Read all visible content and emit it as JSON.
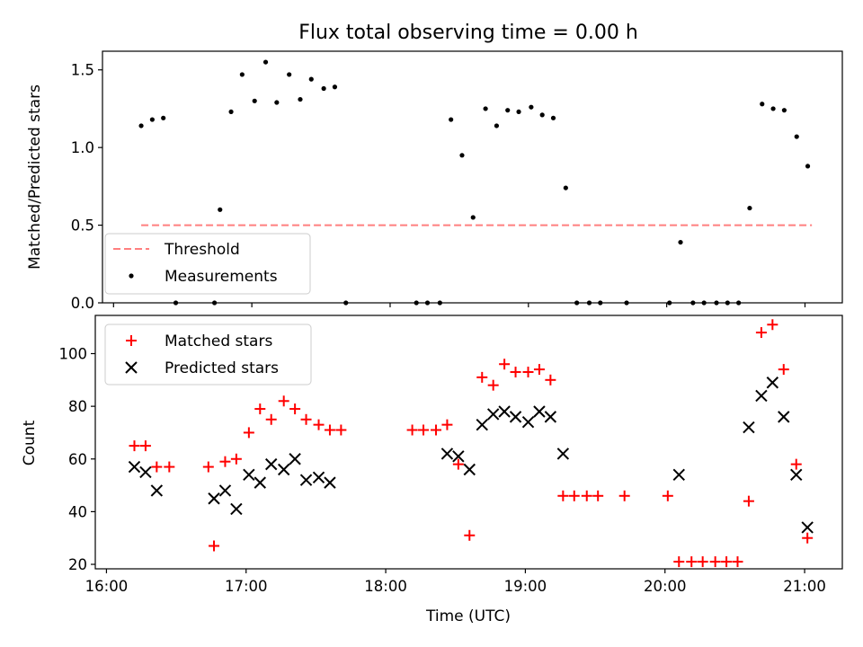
{
  "title": "Flux total observing time = 0.00 h",
  "colors": {
    "threshold": "#ff7f7f",
    "matched": "#ff0000",
    "predicted": "#000000",
    "measurement": "#000000"
  },
  "chart_data": [
    {
      "type": "scatter",
      "ylabel": "Matched/Predicted stars",
      "ylim": [
        0,
        1.62
      ],
      "yticks": [
        "0.0",
        "0.5",
        "1.0",
        "1.5"
      ],
      "xlim": [
        15.92,
        21.27
      ],
      "grid": false,
      "legend_placement": "lower-left",
      "threshold": {
        "name": "Threshold",
        "value": 0.5,
        "x": [
          16.2,
          21.05
        ]
      },
      "series": [
        {
          "name": "Measurements",
          "x": [
            16.2,
            16.28,
            16.36,
            16.45,
            16.73,
            16.77,
            16.85,
            16.93,
            17.02,
            17.1,
            17.18,
            17.27,
            17.35,
            17.43,
            17.52,
            17.6,
            17.68,
            18.19,
            18.27,
            18.36,
            18.44,
            18.52,
            18.6,
            18.69,
            18.77,
            18.85,
            18.93,
            19.02,
            19.1,
            19.18,
            19.27,
            19.35,
            19.44,
            19.52,
            19.71,
            20.02,
            20.1,
            20.19,
            20.27,
            20.36,
            20.44,
            20.52,
            20.6,
            20.69,
            20.77,
            20.85,
            20.94,
            21.02
          ],
          "y": [
            1.14,
            1.18,
            1.19,
            0,
            0,
            0.6,
            1.23,
            1.47,
            1.3,
            1.55,
            1.29,
            1.47,
            1.31,
            1.44,
            1.38,
            1.39,
            0,
            0,
            0,
            0,
            1.18,
            0.95,
            0.55,
            1.25,
            1.14,
            1.24,
            1.23,
            1.26,
            1.21,
            1.19,
            0.74,
            0,
            0,
            0,
            0,
            0,
            0.39,
            0,
            0,
            0,
            0,
            0,
            0.61,
            1.28,
            1.25,
            1.24,
            1.07,
            0.88
          ]
        }
      ]
    },
    {
      "type": "scatter",
      "xlabel": "Time (UTC)",
      "ylabel": "Count",
      "ylim": [
        18.3,
        114.5
      ],
      "yticks": [
        "20",
        "40",
        "60",
        "80",
        "100"
      ],
      "xlim": [
        15.92,
        21.27
      ],
      "xticks": [
        "16:00",
        "17:00",
        "18:00",
        "19:00",
        "20:00",
        "21:00"
      ],
      "grid": false,
      "legend_placement": "upper-left",
      "series": [
        {
          "name": "Matched stars",
          "x": [
            16.2,
            16.28,
            16.36,
            16.45,
            16.73,
            16.77,
            16.85,
            16.93,
            17.02,
            17.1,
            17.18,
            17.27,
            17.35,
            17.43,
            17.52,
            17.6,
            17.68,
            18.19,
            18.27,
            18.36,
            18.44,
            18.52,
            18.6,
            18.69,
            18.77,
            18.85,
            18.93,
            19.02,
            19.1,
            19.18,
            19.27,
            19.35,
            19.44,
            19.52,
            19.71,
            20.02,
            20.1,
            20.19,
            20.27,
            20.36,
            20.44,
            20.52,
            20.6,
            20.69,
            20.77,
            20.85,
            20.94,
            21.02
          ],
          "y": [
            65,
            65,
            57,
            57,
            57,
            27,
            59,
            60,
            70,
            79,
            75,
            82,
            79,
            75,
            73,
            71,
            71,
            71,
            71,
            71,
            73,
            58,
            31,
            91,
            88,
            96,
            93,
            93,
            94,
            90,
            46,
            46,
            46,
            46,
            46,
            46,
            21,
            21,
            21,
            21,
            21,
            21,
            44,
            108,
            111,
            94,
            58,
            30
          ]
        },
        {
          "name": "Predicted stars",
          "x": [
            16.2,
            16.28,
            16.36,
            16.77,
            16.85,
            16.93,
            17.02,
            17.1,
            17.18,
            17.27,
            17.35,
            17.43,
            17.52,
            17.6,
            18.44,
            18.52,
            18.6,
            18.69,
            18.77,
            18.85,
            18.93,
            19.02,
            19.1,
            19.18,
            19.27,
            20.1,
            20.6,
            20.69,
            20.77,
            20.85,
            20.94,
            21.02
          ],
          "y": [
            57,
            55,
            48,
            45,
            48,
            41,
            54,
            51,
            58,
            56,
            60,
            52,
            53,
            51,
            62,
            61,
            56,
            73,
            77,
            78,
            76,
            74,
            78,
            76,
            62,
            54,
            72,
            84,
            89,
            76,
            54,
            34
          ]
        }
      ]
    }
  ]
}
